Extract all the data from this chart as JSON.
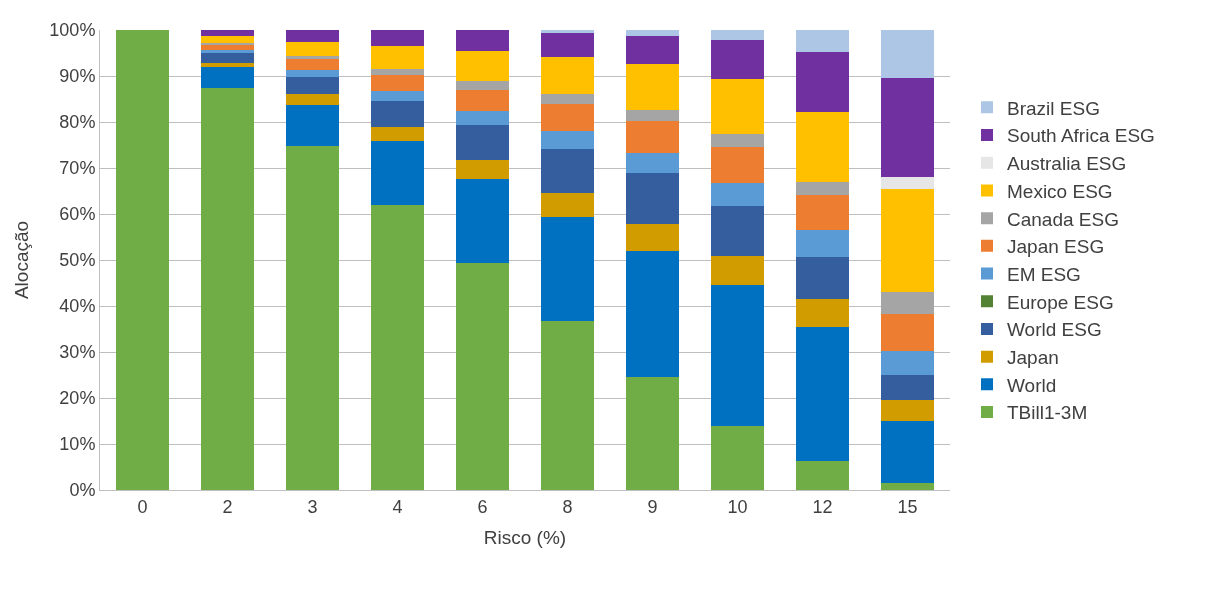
{
  "chart_data": {
    "type": "bar",
    "stacked": true,
    "xlabel": "Risco (%)",
    "ylabel": "Alocação",
    "categories": [
      "0",
      "2",
      "3",
      "4",
      "6",
      "8",
      "9",
      "10",
      "12",
      "15"
    ],
    "series": [
      {
        "name": "TBill1-3M",
        "color": "#70ad47",
        "values": [
          100,
          87.3,
          74.8,
          62.0,
          49.4,
          36.8,
          24.5,
          14.0,
          6.2,
          1.5
        ]
      },
      {
        "name": "World",
        "color": "#0070c0",
        "values": [
          0,
          4.6,
          8.9,
          13.8,
          18.2,
          22.6,
          27.5,
          30.6,
          29.3,
          13.6
        ]
      },
      {
        "name": "Japan",
        "color": "#d09c00",
        "values": [
          0,
          1.0,
          2.3,
          3.1,
          4.1,
          5.1,
          5.9,
          6.3,
          6.0,
          4.5
        ]
      },
      {
        "name": "World ESG",
        "color": "#355e9f",
        "values": [
          0,
          2.2,
          3.8,
          5.6,
          7.7,
          9.7,
          11.0,
          10.8,
          9.2,
          5.4
        ]
      },
      {
        "name": "Europe ESG",
        "color": "#548235",
        "values": [
          0,
          0,
          0,
          0,
          0,
          0,
          0,
          0,
          0,
          0
        ]
      },
      {
        "name": "EM ESG",
        "color": "#5b9bd5",
        "values": [
          0,
          0.6,
          1.5,
          2.3,
          3.0,
          3.8,
          4.3,
          5.1,
          5.9,
          5.2
        ]
      },
      {
        "name": "Japan ESG",
        "color": "#ed7d31",
        "values": [
          0,
          1.0,
          2.3,
          3.5,
          4.6,
          5.9,
          7.0,
          7.7,
          7.5,
          8.0
        ]
      },
      {
        "name": "Canada ESG",
        "color": "#a5a5a5",
        "values": [
          0,
          0.5,
          0.8,
          1.3,
          1.9,
          2.1,
          2.4,
          2.8,
          2.9,
          4.9
        ]
      },
      {
        "name": "Mexico ESG",
        "color": "#ffc000",
        "values": [
          0,
          1.6,
          3.1,
          4.9,
          6.5,
          8.1,
          10.0,
          12.0,
          15.2,
          22.4
        ]
      },
      {
        "name": "Australia ESG",
        "color": "#e7e6e6",
        "values": [
          0,
          0,
          0,
          0,
          0,
          0,
          0,
          0,
          0,
          2.5
        ]
      },
      {
        "name": "South Africa ESG",
        "color": "#7030a0",
        "values": [
          0,
          1.2,
          2.5,
          3.5,
          4.6,
          5.2,
          6.2,
          8.5,
          13.0,
          21.6
        ]
      },
      {
        "name": "Brazil ESG",
        "color": "#adc6e5",
        "values": [
          0,
          0,
          0,
          0,
          0,
          0.7,
          1.2,
          2.2,
          4.8,
          10.4
        ]
      }
    ],
    "ylim": [
      0,
      100
    ],
    "yticks": [
      {
        "value": 0,
        "label": "0%"
      },
      {
        "value": 10,
        "label": "10%"
      },
      {
        "value": 20,
        "label": "20%"
      },
      {
        "value": 30,
        "label": "30%"
      },
      {
        "value": 40,
        "label": "40%"
      },
      {
        "value": 50,
        "label": "50%"
      },
      {
        "value": 60,
        "label": "60%"
      },
      {
        "value": 70,
        "label": "70%"
      },
      {
        "value": 80,
        "label": "80%"
      },
      {
        "value": 90,
        "label": "90%"
      },
      {
        "value": 100,
        "label": "100%"
      }
    ],
    "grid": "y",
    "legend": "right"
  }
}
